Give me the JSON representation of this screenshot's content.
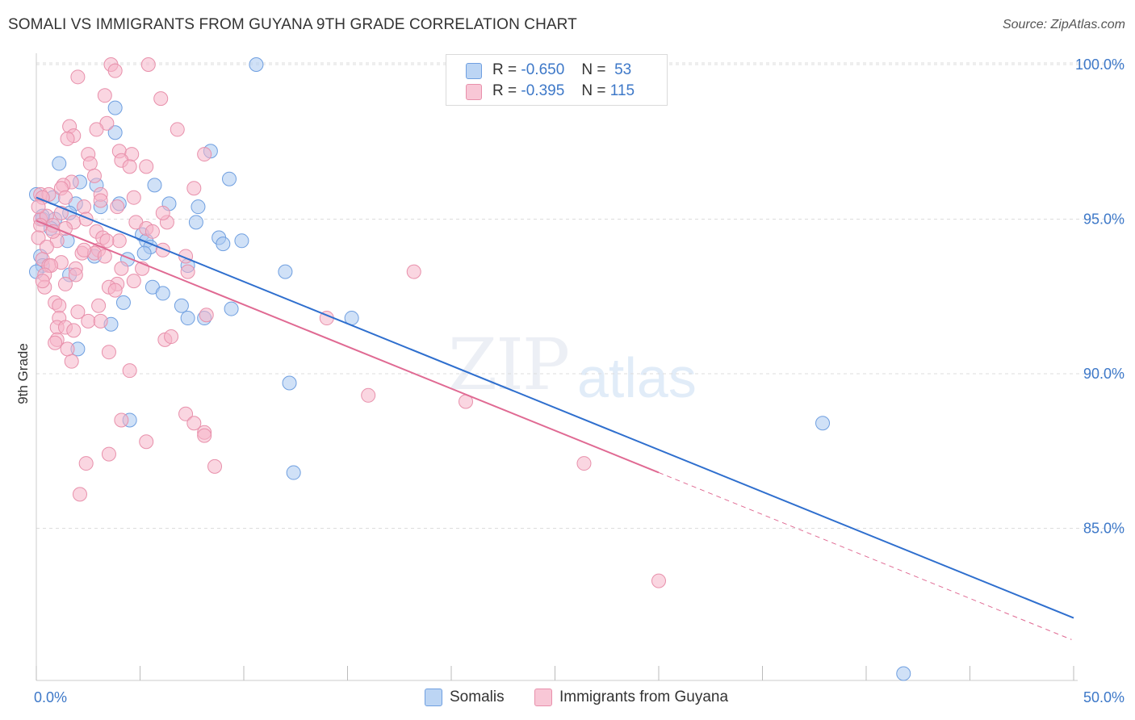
{
  "title": "SOMALI VS IMMIGRANTS FROM GUYANA 9TH GRADE CORRELATION CHART",
  "source": "Source: ZipAtlas.com",
  "watermark": {
    "zip": "ZIP",
    "atlas": "atlas"
  },
  "legend": {
    "rows": [
      {
        "r_label": "R =",
        "r_value": "-0.650",
        "n_label": "N =",
        "n_value": "53"
      },
      {
        "r_label": "R =",
        "r_value": "-0.395",
        "n_label": "N =",
        "n_value": "115"
      }
    ]
  },
  "bottom_legend": [
    "Somalis",
    "Immigrants from Guyana"
  ],
  "colors": {
    "somali_fill": "#a9c8f0",
    "somali_stroke": "#6f9fe0",
    "somali_line": "#2f6fce",
    "guyana_fill": "#f5b5c8",
    "guyana_stroke": "#e890ab",
    "guyana_line": "#e06a93",
    "tick_text": "#3d78c8",
    "grid": "#dddddd"
  },
  "chart_data": {
    "type": "scatter",
    "title": "SOMALI VS IMMIGRANTS FROM GUYANA 9TH GRADE CORRELATION CHART",
    "xlabel": "",
    "ylabel": "9th Grade",
    "xlim": [
      0,
      50
    ],
    "ylim": [
      80.0,
      100.5
    ],
    "x_tick_labels": [
      "0.0%",
      "50.0%"
    ],
    "y_ticks": [
      85,
      90,
      95,
      100
    ],
    "y_tick_labels": [
      "85.0%",
      "90.0%",
      "95.0%",
      "100.0%"
    ],
    "grid": true,
    "legend_placement": "top-center",
    "series": [
      {
        "name": "Somalis",
        "r": -0.65,
        "n": 53,
        "trend": {
          "x": [
            0.0,
            50.0
          ],
          "y": [
            95.7,
            82.1
          ],
          "solid_to": 50.0
        },
        "points": [
          [
            10.6,
            100.0
          ],
          [
            3.8,
            98.6
          ],
          [
            3.8,
            97.8
          ],
          [
            8.4,
            97.2
          ],
          [
            1.1,
            96.8
          ],
          [
            2.1,
            96.2
          ],
          [
            2.9,
            96.1
          ],
          [
            5.7,
            96.1
          ],
          [
            9.3,
            96.3
          ],
          [
            0.8,
            95.7
          ],
          [
            0.0,
            95.8
          ],
          [
            6.4,
            95.5
          ],
          [
            7.8,
            95.4
          ],
          [
            1.9,
            95.5
          ],
          [
            3.1,
            95.4
          ],
          [
            4.0,
            95.5
          ],
          [
            1.6,
            95.2
          ],
          [
            0.3,
            95.0
          ],
          [
            0.9,
            95.0
          ],
          [
            7.7,
            94.9
          ],
          [
            0.7,
            94.7
          ],
          [
            5.1,
            94.5
          ],
          [
            5.3,
            94.3
          ],
          [
            8.8,
            94.4
          ],
          [
            9.9,
            94.3
          ],
          [
            1.5,
            94.3
          ],
          [
            9.0,
            94.2
          ],
          [
            5.5,
            94.1
          ],
          [
            5.2,
            93.9
          ],
          [
            2.8,
            93.8
          ],
          [
            4.4,
            93.7
          ],
          [
            0.2,
            93.8
          ],
          [
            0.3,
            93.5
          ],
          [
            7.3,
            93.5
          ],
          [
            0.0,
            93.3
          ],
          [
            12.0,
            93.3
          ],
          [
            1.6,
            93.2
          ],
          [
            5.6,
            92.8
          ],
          [
            6.1,
            92.6
          ],
          [
            4.2,
            92.3
          ],
          [
            7.0,
            92.2
          ],
          [
            9.4,
            92.1
          ],
          [
            7.3,
            91.8
          ],
          [
            8.1,
            91.8
          ],
          [
            15.2,
            91.8
          ],
          [
            3.6,
            91.6
          ],
          [
            2.0,
            90.8
          ],
          [
            12.2,
            89.7
          ],
          [
            4.5,
            88.5
          ],
          [
            37.9,
            88.4
          ],
          [
            12.4,
            86.8
          ],
          [
            41.8,
            80.3
          ],
          [
            0.3,
            95.1
          ]
        ]
      },
      {
        "name": "Immigrants from Guyana",
        "r": -0.395,
        "n": 115,
        "trend": {
          "x": [
            0.0,
            49.9
          ],
          "y": [
            94.95,
            81.4
          ],
          "solid_to": 30.0
        },
        "points": [
          [
            3.6,
            100.0
          ],
          [
            5.4,
            100.0
          ],
          [
            3.8,
            99.8
          ],
          [
            2.0,
            99.6
          ],
          [
            3.3,
            99.0
          ],
          [
            6.0,
            98.9
          ],
          [
            3.4,
            98.1
          ],
          [
            1.6,
            98.0
          ],
          [
            2.9,
            97.9
          ],
          [
            6.8,
            97.9
          ],
          [
            1.8,
            97.7
          ],
          [
            1.5,
            97.6
          ],
          [
            4.0,
            97.2
          ],
          [
            2.5,
            97.1
          ],
          [
            4.6,
            97.1
          ],
          [
            8.1,
            97.1
          ],
          [
            4.1,
            96.9
          ],
          [
            2.6,
            96.8
          ],
          [
            4.5,
            96.7
          ],
          [
            5.3,
            96.7
          ],
          [
            2.8,
            96.4
          ],
          [
            1.7,
            96.2
          ],
          [
            1.3,
            96.1
          ],
          [
            1.2,
            96.0
          ],
          [
            7.6,
            96.0
          ],
          [
            0.2,
            95.8
          ],
          [
            0.6,
            95.8
          ],
          [
            0.3,
            95.7
          ],
          [
            3.1,
            95.8
          ],
          [
            1.4,
            95.7
          ],
          [
            3.1,
            95.6
          ],
          [
            4.7,
            95.7
          ],
          [
            3.9,
            95.4
          ],
          [
            2.3,
            95.4
          ],
          [
            1.2,
            95.2
          ],
          [
            0.2,
            95.0
          ],
          [
            0.5,
            95.1
          ],
          [
            1.8,
            94.9
          ],
          [
            4.8,
            94.9
          ],
          [
            6.3,
            94.9
          ],
          [
            0.2,
            94.8
          ],
          [
            0.8,
            94.8
          ],
          [
            1.4,
            94.7
          ],
          [
            5.3,
            94.7
          ],
          [
            2.9,
            94.6
          ],
          [
            5.6,
            94.6
          ],
          [
            0.1,
            94.4
          ],
          [
            1.0,
            94.3
          ],
          [
            3.2,
            94.4
          ],
          [
            4.0,
            94.3
          ],
          [
            0.5,
            94.1
          ],
          [
            3.0,
            94.0
          ],
          [
            6.1,
            94.0
          ],
          [
            2.2,
            93.9
          ],
          [
            2.8,
            93.9
          ],
          [
            3.3,
            93.8
          ],
          [
            7.2,
            93.8
          ],
          [
            0.3,
            93.7
          ],
          [
            1.2,
            93.6
          ],
          [
            0.6,
            93.5
          ],
          [
            0.7,
            93.5
          ],
          [
            1.9,
            93.4
          ],
          [
            4.1,
            93.4
          ],
          [
            5.1,
            93.4
          ],
          [
            0.4,
            93.2
          ],
          [
            1.9,
            93.2
          ],
          [
            18.2,
            93.3
          ],
          [
            3.9,
            92.9
          ],
          [
            1.4,
            92.9
          ],
          [
            3.5,
            92.8
          ],
          [
            3.8,
            92.7
          ],
          [
            0.9,
            92.3
          ],
          [
            1.1,
            92.2
          ],
          [
            3.0,
            92.2
          ],
          [
            2.0,
            92.0
          ],
          [
            8.2,
            91.9
          ],
          [
            1.1,
            91.8
          ],
          [
            2.5,
            91.7
          ],
          [
            3.1,
            91.7
          ],
          [
            14.0,
            91.8
          ],
          [
            1.0,
            91.5
          ],
          [
            1.4,
            91.5
          ],
          [
            1.8,
            91.4
          ],
          [
            1.0,
            91.1
          ],
          [
            0.9,
            91.0
          ],
          [
            6.2,
            91.1
          ],
          [
            6.5,
            91.2
          ],
          [
            3.5,
            90.7
          ],
          [
            1.7,
            90.4
          ],
          [
            4.5,
            90.1
          ],
          [
            16.0,
            89.3
          ],
          [
            20.7,
            89.1
          ],
          [
            7.2,
            88.7
          ],
          [
            4.1,
            88.5
          ],
          [
            7.6,
            88.4
          ],
          [
            8.1,
            88.1
          ],
          [
            8.1,
            88.0
          ],
          [
            5.3,
            87.8
          ],
          [
            3.5,
            87.4
          ],
          [
            2.4,
            87.1
          ],
          [
            8.6,
            87.0
          ],
          [
            26.4,
            87.1
          ],
          [
            2.1,
            86.1
          ],
          [
            30.0,
            83.3
          ],
          [
            2.3,
            94.0
          ],
          [
            0.1,
            95.4
          ],
          [
            0.8,
            94.6
          ],
          [
            4.7,
            93.0
          ],
          [
            7.3,
            93.3
          ],
          [
            0.4,
            92.8
          ],
          [
            1.5,
            90.8
          ],
          [
            2.4,
            95.0
          ],
          [
            6.1,
            95.2
          ],
          [
            3.4,
            94.3
          ],
          [
            0.3,
            93.0
          ]
        ]
      }
    ]
  }
}
